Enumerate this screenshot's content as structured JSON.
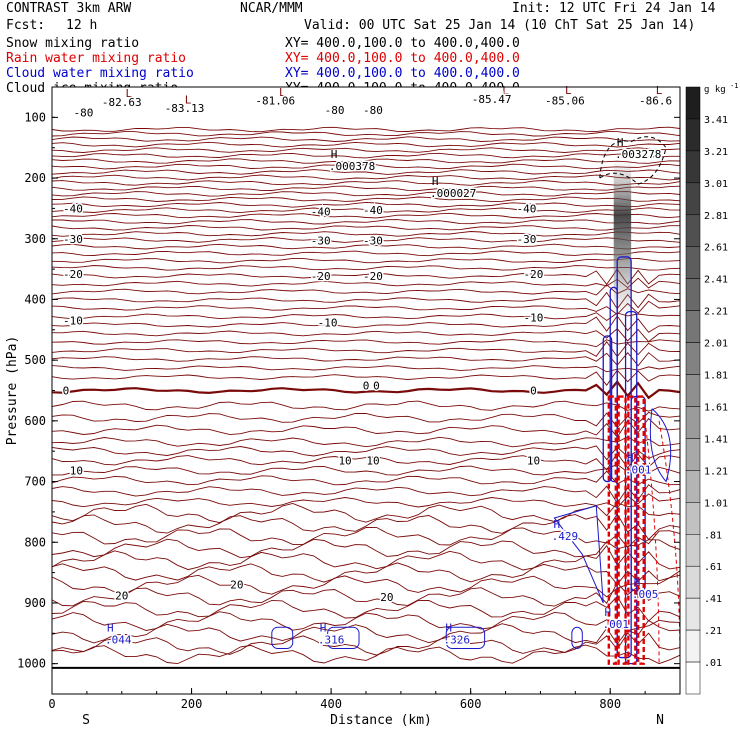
{
  "header": {
    "model": "CONTRAST  3km ARW",
    "org": "NCAR/MMM",
    "init": "Init: 12 UTC Fri 24 Jan 14",
    "fcst_label": "Fcst:",
    "fcst_value": "12 h",
    "valid": "Valid: 00 UTC Sat 25 Jan 14 (10 ChT Sat 25 Jan 14)"
  },
  "legend": [
    {
      "name": "Snow mixing ratio",
      "xy": "XY= 400.0,100.0 to 400.0,400.0",
      "color": "#000000"
    },
    {
      "name": "Rain water mixing ratio",
      "xy": "XY= 400.0,100.0 to 400.0,400.0",
      "color": "#dd0000"
    },
    {
      "name": "Cloud water mixing ratio",
      "xy": "XY= 400.0,100.0 to 400.0,400.0",
      "color": "#0000cc"
    },
    {
      "name": "Cloud ice mixing ratio",
      "xy": "XY= 400.0,100.0 to 400.0,400.0",
      "color": "#000000"
    }
  ],
  "colorbar": {
    "unit": "g kg",
    "unit_exp": "-1",
    "labels": [
      "3.41",
      "3.21",
      "3.01",
      "2.81",
      "2.61",
      "2.41",
      "2.21",
      "2.01",
      "1.81",
      "1.61",
      "1.41",
      "1.21",
      "1.01",
      ".81",
      ".61",
      ".41",
      ".21",
      ".01"
    ]
  },
  "chart_data": {
    "type": "vertical cross-section (contour)",
    "xlabel": "Distance (km)",
    "ylabel": "Pressure (hPa)",
    "xlim": [
      0,
      900
    ],
    "ylim": [
      1050,
      50
    ],
    "x_ticks": [
      "0",
      "200",
      "400",
      "600",
      "800"
    ],
    "y_ticks": [
      "100",
      "200",
      "300",
      "400",
      "500",
      "600",
      "700",
      "800",
      "900",
      "1000"
    ],
    "x_end_labels": {
      "left": "S",
      "right": "N"
    },
    "temperature_contours": [
      {
        "level": "-80",
        "labels": [
          {
            "x": 45,
            "p": 92,
            "text": "-80"
          },
          {
            "x": 405,
            "p": 88,
            "text": "-80"
          },
          {
            "x": 460,
            "p": 88,
            "text": "-80"
          }
        ]
      },
      {
        "level": "-40",
        "labels": [
          {
            "x": 30,
            "p": 250,
            "text": "-40"
          },
          {
            "x": 385,
            "p": 255,
            "text": "-40"
          },
          {
            "x": 460,
            "p": 253,
            "text": "-40"
          },
          {
            "x": 680,
            "p": 250,
            "text": "-40"
          }
        ]
      },
      {
        "level": "-30",
        "labels": [
          {
            "x": 30,
            "p": 300,
            "text": "-30"
          },
          {
            "x": 385,
            "p": 303,
            "text": "-30"
          },
          {
            "x": 460,
            "p": 303,
            "text": "-30"
          },
          {
            "x": 680,
            "p": 300,
            "text": "-30"
          }
        ]
      },
      {
        "level": "-20",
        "labels": [
          {
            "x": 30,
            "p": 358,
            "text": "-20"
          },
          {
            "x": 385,
            "p": 361,
            "text": "-20"
          },
          {
            "x": 460,
            "p": 361,
            "text": "-20"
          },
          {
            "x": 690,
            "p": 358,
            "text": "-20"
          }
        ]
      },
      {
        "level": "-10",
        "labels": [
          {
            "x": 30,
            "p": 435,
            "text": "-10"
          },
          {
            "x": 395,
            "p": 438,
            "text": "-10"
          },
          {
            "x": 690,
            "p": 430,
            "text": "-10"
          }
        ]
      },
      {
        "level": "0",
        "labels": [
          {
            "x": 20,
            "p": 550,
            "text": "0"
          },
          {
            "x": 450,
            "p": 542,
            "text": "0"
          },
          {
            "x": 465,
            "p": 542,
            "text": "0"
          },
          {
            "x": 690,
            "p": 550,
            "text": "0"
          }
        ]
      },
      {
        "level": "10",
        "labels": [
          {
            "x": 35,
            "p": 682,
            "text": "10"
          },
          {
            "x": 420,
            "p": 665,
            "text": "10"
          },
          {
            "x": 460,
            "p": 665,
            "text": "10"
          },
          {
            "x": 690,
            "p": 665,
            "text": "10"
          }
        ]
      },
      {
        "level": "20",
        "labels": [
          {
            "x": 100,
            "p": 888,
            "text": "20"
          },
          {
            "x": 265,
            "p": 870,
            "text": "20"
          },
          {
            "x": 480,
            "p": 890,
            "text": "20"
          }
        ]
      }
    ],
    "pressure_minima": [
      {
        "x": 100,
        "p": 75,
        "text": "-82.63"
      },
      {
        "x": 190,
        "p": 85,
        "text": "-83.13"
      },
      {
        "x": 320,
        "p": 72,
        "text": "-81.06"
      },
      {
        "x": 630,
        "p": 70,
        "text": "-85.47"
      },
      {
        "x": 735,
        "p": 72,
        "text": "-85.06"
      },
      {
        "x": 865,
        "p": 72,
        "text": "-86.6"
      }
    ],
    "snow_maxima": [
      {
        "x": 430,
        "p": 180,
        "text": ".000378"
      },
      {
        "x": 575,
        "p": 225,
        "text": ".000027"
      },
      {
        "x": 840,
        "p": 160,
        "text": ".003278"
      }
    ],
    "cloud_water_maxima": [
      {
        "x": 95,
        "p": 960,
        "text": ".044"
      },
      {
        "x": 400,
        "p": 960,
        "text": ".316"
      },
      {
        "x": 580,
        "p": 960,
        "text": ".326"
      },
      {
        "x": 735,
        "p": 790,
        "text": ".429"
      },
      {
        "x": 840,
        "p": 680,
        "text": ".001"
      },
      {
        "x": 808,
        "p": 935,
        "text": ".001"
      },
      {
        "x": 850,
        "p": 885,
        "text": ".005"
      }
    ]
  }
}
